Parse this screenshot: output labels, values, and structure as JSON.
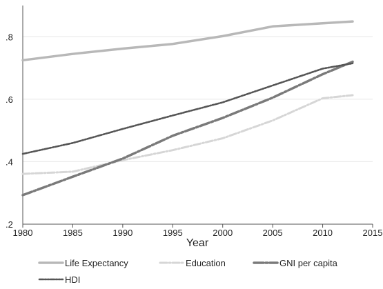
{
  "chart_data": {
    "type": "line",
    "xlabel": "Year",
    "ylabel": "",
    "xlim": [
      1980,
      2015
    ],
    "ylim": [
      0.2,
      0.9
    ],
    "xticks": [
      1980,
      1985,
      1990,
      1995,
      2000,
      2005,
      2010,
      2015
    ],
    "yticks": [
      0.2,
      0.4,
      0.6,
      0.8
    ],
    "ytick_labels": [
      ".2",
      ".4",
      ".6",
      ".8"
    ],
    "grid": true,
    "legend_position": "bottom",
    "series": [
      {
        "name": "Life Expectancy",
        "color": "#b8b8b8",
        "style": "solid",
        "x": [
          1980,
          1985,
          1990,
          1995,
          2000,
          2005,
          2010,
          2013
        ],
        "y": [
          0.725,
          0.745,
          0.762,
          0.777,
          0.802,
          0.833,
          0.843,
          0.849
        ]
      },
      {
        "name": "Education",
        "color": "#d6d6d6",
        "style": "dash-dot",
        "x": [
          1980,
          1985,
          1990,
          1995,
          2000,
          2005,
          2010,
          2013
        ],
        "y": [
          0.361,
          0.368,
          0.405,
          0.437,
          0.475,
          0.532,
          0.603,
          0.613
        ]
      },
      {
        "name": "GNI per capita",
        "color": "#7a7a7a",
        "style": "long-dash-dot",
        "x": [
          1980,
          1985,
          1990,
          1995,
          2000,
          2005,
          2010,
          2013
        ],
        "y": [
          0.293,
          0.352,
          0.41,
          0.483,
          0.54,
          0.605,
          0.68,
          0.72
        ]
      },
      {
        "name": "HDI",
        "color": "#555555",
        "style": "dash-dot-dot",
        "x": [
          1980,
          1985,
          1990,
          1995,
          2000,
          2005,
          2010,
          2013
        ],
        "y": [
          0.425,
          0.46,
          0.505,
          0.548,
          0.59,
          0.644,
          0.698,
          0.715
        ]
      }
    ]
  }
}
